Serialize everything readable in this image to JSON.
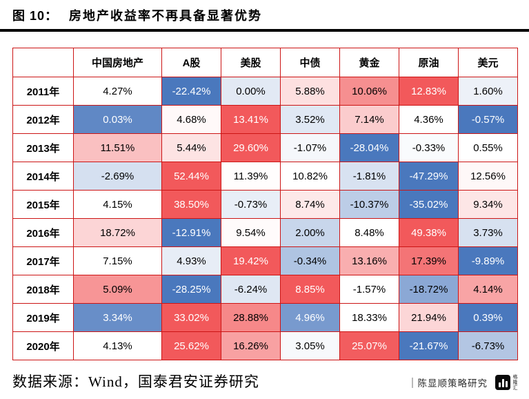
{
  "figure": {
    "label": "图 10：",
    "title": "房地产收益率不再具备显著优势"
  },
  "chart_data": {
    "type": "heatmap",
    "title": "房地产收益率不再具备显著优势",
    "unit": "%",
    "value_format": "0.00%",
    "columns": [
      "中国房地产",
      "A股",
      "美股",
      "中债",
      "黄金",
      "原油",
      "美元"
    ],
    "rows": [
      "2011年",
      "2012年",
      "2013年",
      "2014年",
      "2015年",
      "2016年",
      "2017年",
      "2018年",
      "2019年",
      "2020年"
    ],
    "values": [
      [
        4.27,
        -22.42,
        0.0,
        5.88,
        10.06,
        12.83,
        1.6
      ],
      [
        0.03,
        4.68,
        13.41,
        3.52,
        7.14,
        4.36,
        -0.57
      ],
      [
        11.51,
        5.44,
        29.6,
        -1.07,
        -28.04,
        -0.33,
        0.55
      ],
      [
        -2.69,
        52.44,
        11.39,
        10.82,
        -1.81,
        -47.29,
        12.56
      ],
      [
        4.15,
        38.5,
        -0.73,
        8.74,
        -10.37,
        -35.02,
        9.34
      ],
      [
        18.72,
        -12.91,
        9.54,
        2.0,
        8.48,
        49.38,
        3.73
      ],
      [
        7.15,
        4.93,
        19.42,
        -0.34,
        13.16,
        17.39,
        -9.89
      ],
      [
        5.09,
        -28.25,
        -6.24,
        8.85,
        -1.57,
        -18.72,
        4.14
      ],
      [
        3.34,
        33.02,
        28.88,
        4.96,
        18.33,
        21.94,
        0.39
      ],
      [
        4.13,
        25.62,
        16.26,
        3.05,
        25.07,
        -21.67,
        -6.73
      ]
    ],
    "color_scale": {
      "min_color": "#4a78bd",
      "mid_color": "#ffffff",
      "max_color": "#f2595b",
      "normalization": "per-row",
      "midpoint": "median"
    },
    "grid_color": "#cc1414"
  },
  "footer": {
    "source": "数据来源：Wind，国泰君安证券研究",
    "watermark": "陈显顺策略研究",
    "logo_text": "格隆汇"
  }
}
